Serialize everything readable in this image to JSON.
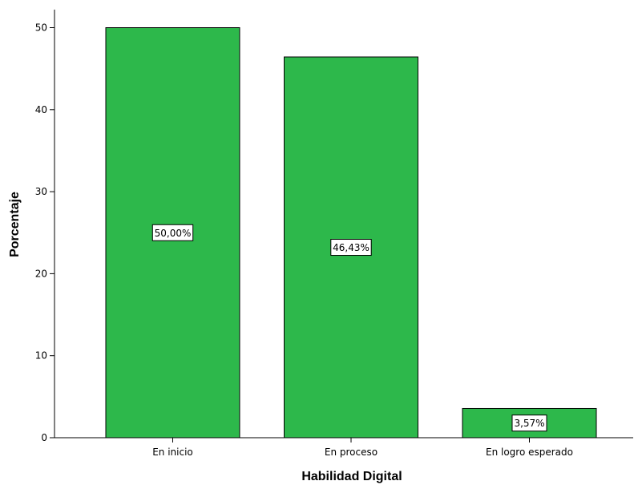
{
  "chart_data": {
    "type": "bar",
    "title": "",
    "xlabel": "Habilidad Digital",
    "ylabel": "Porcentaje",
    "categories": [
      "En inicio",
      "En proceso",
      "En logro esperado"
    ],
    "values": [
      50.0,
      46.43,
      3.57
    ],
    "data_labels": [
      "50,00%",
      "46,43%",
      "3,57%"
    ],
    "y_ticks": [
      0,
      10,
      20,
      30,
      40,
      50
    ],
    "ylim": [
      0,
      52.2
    ],
    "bar_color": "#2db84b",
    "grid": false,
    "legend": "none"
  }
}
